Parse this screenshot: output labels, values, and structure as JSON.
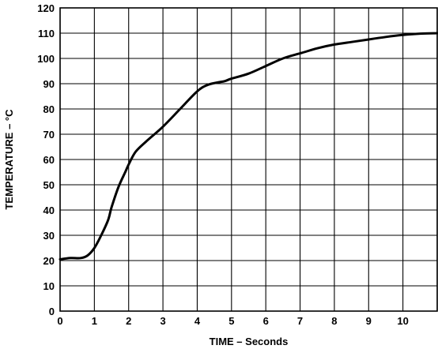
{
  "chart_data": {
    "type": "line",
    "xlabel": "TIME – Seconds",
    "ylabel": "TEMPERATURE – °C",
    "xlim": [
      0,
      11
    ],
    "ylim": [
      0,
      120
    ],
    "x_ticks": [
      0,
      1,
      2,
      3,
      4,
      5,
      6,
      7,
      8,
      9,
      10
    ],
    "y_ticks": [
      0,
      10,
      20,
      30,
      40,
      50,
      60,
      70,
      80,
      90,
      100,
      110,
      120
    ],
    "grid": true,
    "series": [
      {
        "x": [
          0,
          0.3,
          0.6,
          0.8,
          1.0,
          1.2,
          1.4,
          1.5,
          1.7,
          1.9,
          2.0,
          2.2,
          2.5,
          3.0,
          3.5,
          4.0,
          4.3,
          4.6,
          4.8,
          5.0,
          5.5,
          6.0,
          6.5,
          7.0,
          7.5,
          8.0,
          8.5,
          9.0,
          9.5,
          10.0,
          10.5,
          11.0
        ],
        "y": [
          20.5,
          21,
          21,
          22,
          25,
          30,
          36,
          41,
          49,
          55,
          58,
          63,
          67,
          73,
          80,
          87,
          89.5,
          90.5,
          91,
          92,
          94,
          97,
          100,
          102,
          104,
          105.5,
          106.5,
          107.5,
          108.5,
          109.3,
          109.8,
          110
        ]
      }
    ]
  }
}
